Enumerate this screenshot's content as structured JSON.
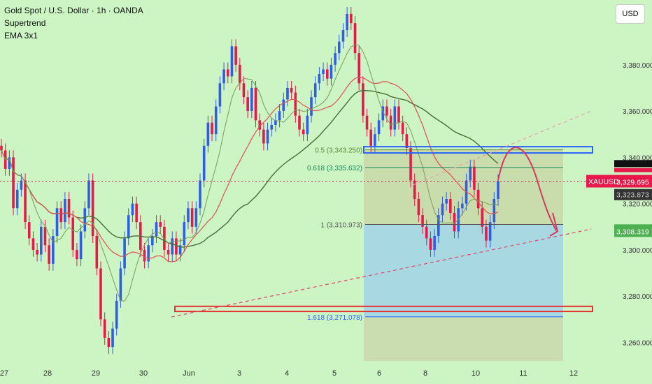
{
  "header": {
    "title": "Gold Spot / U.S. Dollar · 1h · OANDA",
    "indicator_1": "Supertrend",
    "indicator_2": "EMA 3x1",
    "currency_button": "USD"
  },
  "chart_data": {
    "type": "line",
    "title": "Gold Spot / U.S. Dollar · 1h · OANDA",
    "symbol": "XAUUSD",
    "y_ticks": [
      "3,380.000",
      "3,360.000",
      "3,340.000",
      "3,320.000",
      "3,300.000",
      "3,280.000",
      "3,260.000"
    ],
    "y_tick_values": [
      3380,
      3360,
      3340,
      3320,
      3300,
      3280,
      3260
    ],
    "ylim": [
      3252,
      3408
    ],
    "x_ticks": [
      "27",
      "28",
      "29",
      "30",
      "Jun",
      "3",
      "4",
      "5",
      "6",
      "8",
      "10",
      "11",
      "12"
    ],
    "price_labels": {
      "last_symbol": "XAUUSD",
      "last_price": "3,329.695",
      "last_value": 3329.695,
      "lower_label": "3,323.873",
      "target_label": "3,308.319",
      "target_value": 3308.319
    },
    "fibonacci": [
      {
        "label": "0.5 (3,343.250)",
        "value": 3343.25
      },
      {
        "label": "0.618 (3,335.632)",
        "value": 3335.632
      },
      {
        "label": "1 (3,310.973)",
        "value": 3310.973
      },
      {
        "label": "1.618 (3,271.078)",
        "value": 3271.078
      }
    ],
    "close_series": [
      3343,
      3335,
      3340,
      3318,
      3326,
      3330,
      3312,
      3305,
      3300,
      3298,
      3310,
      3302,
      3294,
      3306,
      3318,
      3312,
      3322,
      3314,
      3300,
      3296,
      3308,
      3318,
      3330,
      3306,
      3292,
      3270,
      3262,
      3258,
      3266,
      3278,
      3292,
      3305,
      3315,
      3320,
      3312,
      3300,
      3295,
      3302,
      3306,
      3312,
      3310,
      3300,
      3298,
      3305,
      3298,
      3302,
      3312,
      3318,
      3310,
      3318,
      3330,
      3345,
      3355,
      3350,
      3362,
      3372,
      3378,
      3375,
      3388,
      3380,
      3372,
      3366,
      3360,
      3370,
      3356,
      3352,
      3346,
      3352,
      3354,
      3356,
      3360,
      3365,
      3370,
      3368,
      3358,
      3352,
      3350,
      3358,
      3366,
      3372,
      3376,
      3378,
      3374,
      3380,
      3385,
      3390,
      3395,
      3402,
      3398,
      3385,
      3372,
      3358,
      3352,
      3345,
      3350,
      3356,
      3362,
      3358,
      3352,
      3362,
      3355,
      3350,
      3344,
      3330,
      3322,
      3315,
      3310,
      3305,
      3300,
      3306,
      3315,
      3320,
      3322,
      3316,
      3308,
      3318,
      3320,
      3330,
      3336,
      3326,
      3318,
      3310,
      3304,
      3312,
      3322,
      3329.7
    ]
  },
  "annotations": {
    "resistance_level": 3343.25,
    "support_level": 3274.5
  }
}
